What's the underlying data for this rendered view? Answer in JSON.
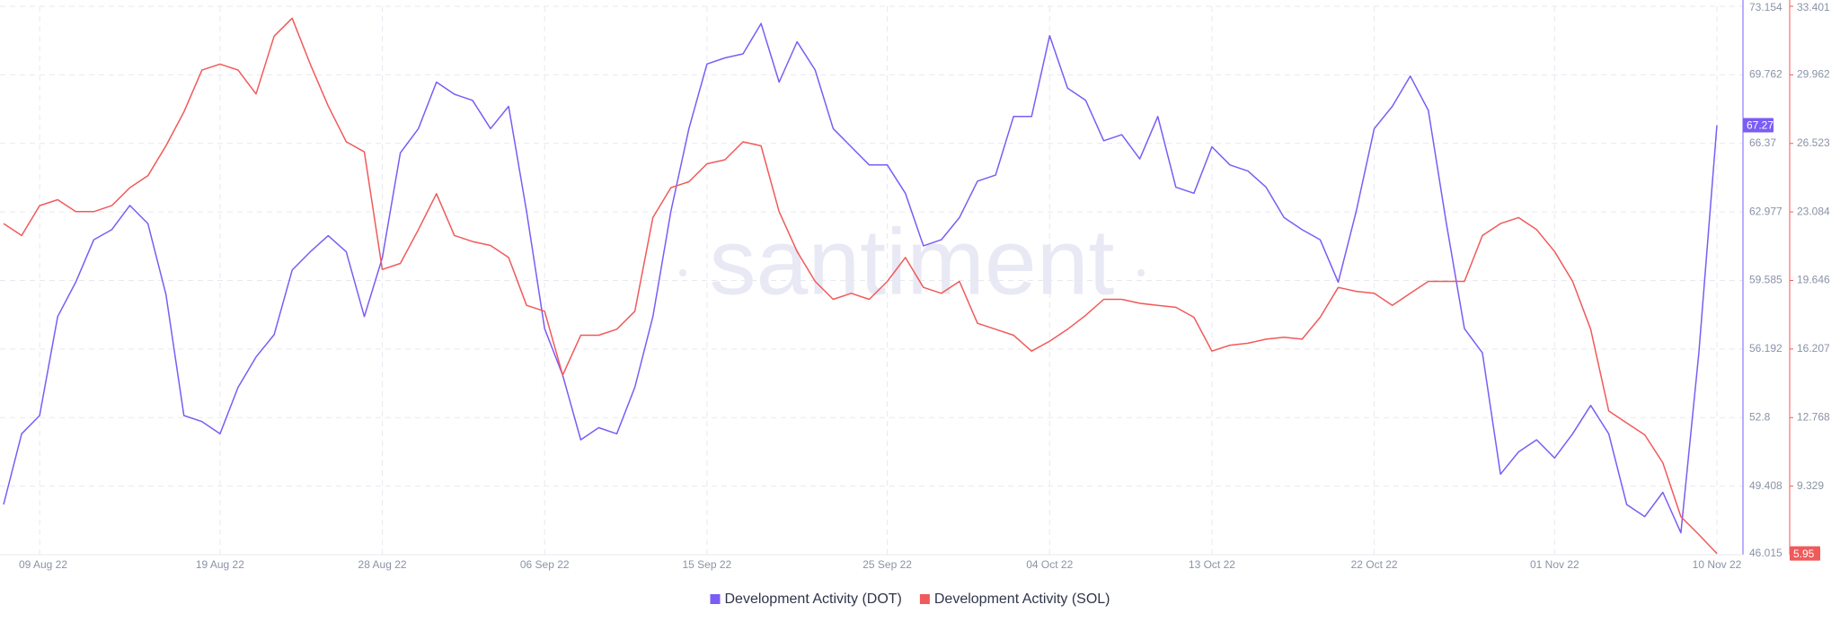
{
  "chart_data": {
    "type": "line",
    "watermark": "santiment",
    "x": [
      "07 Aug 22",
      "08 Aug 22",
      "09 Aug 22",
      "10 Aug 22",
      "11 Aug 22",
      "12 Aug 22",
      "13 Aug 22",
      "14 Aug 22",
      "15 Aug 22",
      "16 Aug 22",
      "17 Aug 22",
      "18 Aug 22",
      "19 Aug 22",
      "20 Aug 22",
      "21 Aug 22",
      "22 Aug 22",
      "23 Aug 22",
      "24 Aug 22",
      "25 Aug 22",
      "26 Aug 22",
      "27 Aug 22",
      "28 Aug 22",
      "29 Aug 22",
      "30 Aug 22",
      "31 Aug 22",
      "01 Sep 22",
      "02 Sep 22",
      "03 Sep 22",
      "04 Sep 22",
      "05 Sep 22",
      "06 Sep 22",
      "07 Sep 22",
      "08 Sep 22",
      "09 Sep 22",
      "10 Sep 22",
      "11 Sep 22",
      "12 Sep 22",
      "13 Sep 22",
      "14 Sep 22",
      "15 Sep 22",
      "16 Sep 22",
      "17 Sep 22",
      "18 Sep 22",
      "19 Sep 22",
      "20 Sep 22",
      "21 Sep 22",
      "22 Sep 22",
      "23 Sep 22",
      "24 Sep 22",
      "25 Sep 22",
      "26 Sep 22",
      "27 Sep 22",
      "28 Sep 22",
      "29 Sep 22",
      "30 Sep 22",
      "01 Oct 22",
      "02 Oct 22",
      "03 Oct 22",
      "04 Oct 22",
      "05 Oct 22",
      "06 Oct 22",
      "07 Oct 22",
      "08 Oct 22",
      "09 Oct 22",
      "10 Oct 22",
      "11 Oct 22",
      "12 Oct 22",
      "13 Oct 22",
      "14 Oct 22",
      "15 Oct 22",
      "16 Oct 22",
      "17 Oct 22",
      "18 Oct 22",
      "19 Oct 22",
      "20 Oct 22",
      "21 Oct 22",
      "22 Oct 22",
      "23 Oct 22",
      "24 Oct 22",
      "25 Oct 22",
      "26 Oct 22",
      "27 Oct 22",
      "28 Oct 22",
      "29 Oct 22",
      "30 Oct 22",
      "31 Oct 22",
      "01 Nov 22",
      "02 Nov 22",
      "03 Nov 22",
      "04 Nov 22",
      "05 Nov 22",
      "06 Nov 22",
      "07 Nov 22",
      "08 Nov 22",
      "09 Nov 22",
      "10 Nov 22"
    ],
    "xticks": [
      "09 Aug 22",
      "19 Aug 22",
      "28 Aug 22",
      "06 Sep 22",
      "15 Sep 22",
      "25 Sep 22",
      "04 Oct 22",
      "13 Oct 22",
      "22 Oct 22",
      "01 Nov 22",
      "10 Nov 22"
    ],
    "series": [
      {
        "name": "Development Activity (DOT)",
        "color": "#7b5cf5",
        "axis": "y",
        "values": [
          48.5,
          52.0,
          52.9,
          57.8,
          59.5,
          61.6,
          62.1,
          63.3,
          62.4,
          58.9,
          52.9,
          52.6,
          52.0,
          54.3,
          55.8,
          56.9,
          60.1,
          61.0,
          61.8,
          61.0,
          57.8,
          60.7,
          65.9,
          67.1,
          69.4,
          68.8,
          68.5,
          67.1,
          68.2,
          63.0,
          57.2,
          54.9,
          51.7,
          52.3,
          52.0,
          54.3,
          57.8,
          63.0,
          67.1,
          70.3,
          70.6,
          70.8,
          72.3,
          69.4,
          71.4,
          70.0,
          67.1,
          66.2,
          65.3,
          65.3,
          63.9,
          61.3,
          61.6,
          62.7,
          64.5,
          64.8,
          67.7,
          67.7,
          71.7,
          69.1,
          68.5,
          66.5,
          66.8,
          65.6,
          67.7,
          64.2,
          63.9,
          66.2,
          65.3,
          65.0,
          64.2,
          62.7,
          62.1,
          61.6,
          59.5,
          63.0,
          67.1,
          68.2,
          69.7,
          68.0,
          62.4,
          57.2,
          56.0,
          50.0,
          51.1,
          51.7,
          50.8,
          52.0,
          53.4,
          52.0,
          48.5,
          47.9,
          49.1,
          47.1,
          56.0,
          67.27
        ]
      },
      {
        "name": "Development Activity (SOL)",
        "color": "#f05a5a",
        "axis": "y2",
        "values": [
          22.5,
          21.9,
          23.4,
          23.7,
          23.1,
          23.1,
          23.4,
          24.3,
          24.9,
          26.4,
          28.1,
          30.2,
          30.5,
          30.2,
          29.0,
          31.9,
          32.8,
          30.5,
          28.4,
          26.6,
          26.1,
          20.2,
          20.5,
          22.2,
          24.0,
          21.9,
          21.6,
          21.4,
          20.8,
          18.4,
          18.1,
          14.9,
          16.9,
          16.9,
          17.2,
          18.1,
          22.8,
          24.3,
          24.6,
          25.5,
          25.7,
          26.6,
          26.4,
          23.1,
          21.1,
          19.6,
          18.7,
          19.0,
          18.7,
          19.6,
          20.8,
          19.3,
          19.0,
          19.6,
          17.5,
          17.2,
          16.9,
          16.1,
          16.6,
          17.2,
          17.9,
          18.7,
          18.7,
          18.5,
          18.4,
          18.3,
          17.8,
          16.1,
          16.4,
          16.5,
          16.7,
          16.8,
          16.7,
          17.8,
          19.3,
          19.1,
          19.0,
          18.4,
          19.0,
          19.6,
          19.6,
          19.6,
          21.9,
          22.5,
          22.8,
          22.2,
          21.1,
          19.6,
          17.2,
          13.1,
          12.5,
          11.9,
          10.5,
          7.8,
          6.9,
          5.95
        ]
      }
    ],
    "ylim": [
      46.015,
      73.154
    ],
    "yticks": [
      46.015,
      49.408,
      52.8,
      56.192,
      59.585,
      62.977,
      66.37,
      69.762,
      73.154
    ],
    "y2lim": [
      5.89,
      33.401
    ],
    "y2ticks": [
      9.329,
      12.768,
      16.207,
      19.646,
      23.084,
      26.523,
      29.962,
      33.401
    ],
    "grid": true,
    "legend": "bottom"
  }
}
